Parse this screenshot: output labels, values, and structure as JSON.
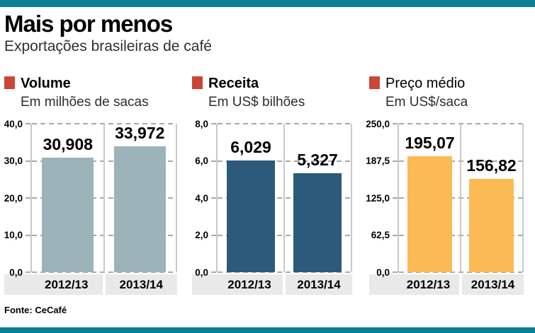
{
  "page": {
    "title": "Mais por menos",
    "subtitle": "Exportações brasileiras de café",
    "source": "Fonte: CeCafé"
  },
  "colors": {
    "accent_teal": "#0c7e94",
    "legend_red": "#cb4639",
    "axis_band_gray": "#e9e9e9",
    "gridline_gray": "#a8a8a8",
    "divider_gray": "#c9c9c9",
    "bar_volume": "#9cb3ba",
    "bar_receita": "#2b5a7a",
    "bar_preco_medio": "#fcba54"
  },
  "chart_data": [
    {
      "type": "bar",
      "title": "Volume",
      "subtitle": "Em milhões de sacas",
      "categories": [
        "2012/13",
        "2013/14"
      ],
      "values": [
        30.908,
        33.972
      ],
      "value_labels": [
        "30,908",
        "33,972"
      ],
      "ylim": [
        0,
        40
      ],
      "yticks": [
        40,
        30,
        20,
        10,
        0
      ],
      "ytick_labels": [
        "40,0",
        "30,0",
        "20,0",
        "10,0",
        "0,0"
      ],
      "bar_color": "#9cb3ba",
      "grid": true,
      "legend_position": "top"
    },
    {
      "type": "bar",
      "title": "Receita",
      "subtitle": "Em US$ bilhões",
      "categories": [
        "2012/13",
        "2013/14"
      ],
      "values": [
        6.029,
        5.327
      ],
      "value_labels": [
        "6,029",
        "5,327"
      ],
      "ylim": [
        0,
        8
      ],
      "yticks": [
        8,
        6,
        4,
        2,
        0
      ],
      "ytick_labels": [
        "8,0",
        "6,0",
        "4,0",
        "2,0",
        "0,0"
      ],
      "bar_color": "#2b5a7a",
      "grid": true,
      "legend_position": "top"
    },
    {
      "type": "bar",
      "title": "Preço médio",
      "subtitle": "Em US$/saca",
      "categories": [
        "2012/13",
        "2013/14"
      ],
      "values": [
        195.07,
        156.82
      ],
      "value_labels": [
        "195,07",
        "156,82"
      ],
      "ylim": [
        0,
        250
      ],
      "yticks": [
        250,
        187.5,
        125,
        62.5,
        0
      ],
      "ytick_labels": [
        "250,0",
        "187,5",
        "125,0",
        "62,5",
        "0,0"
      ],
      "bar_color": "#fcba54",
      "grid": true,
      "legend_position": "top"
    }
  ]
}
